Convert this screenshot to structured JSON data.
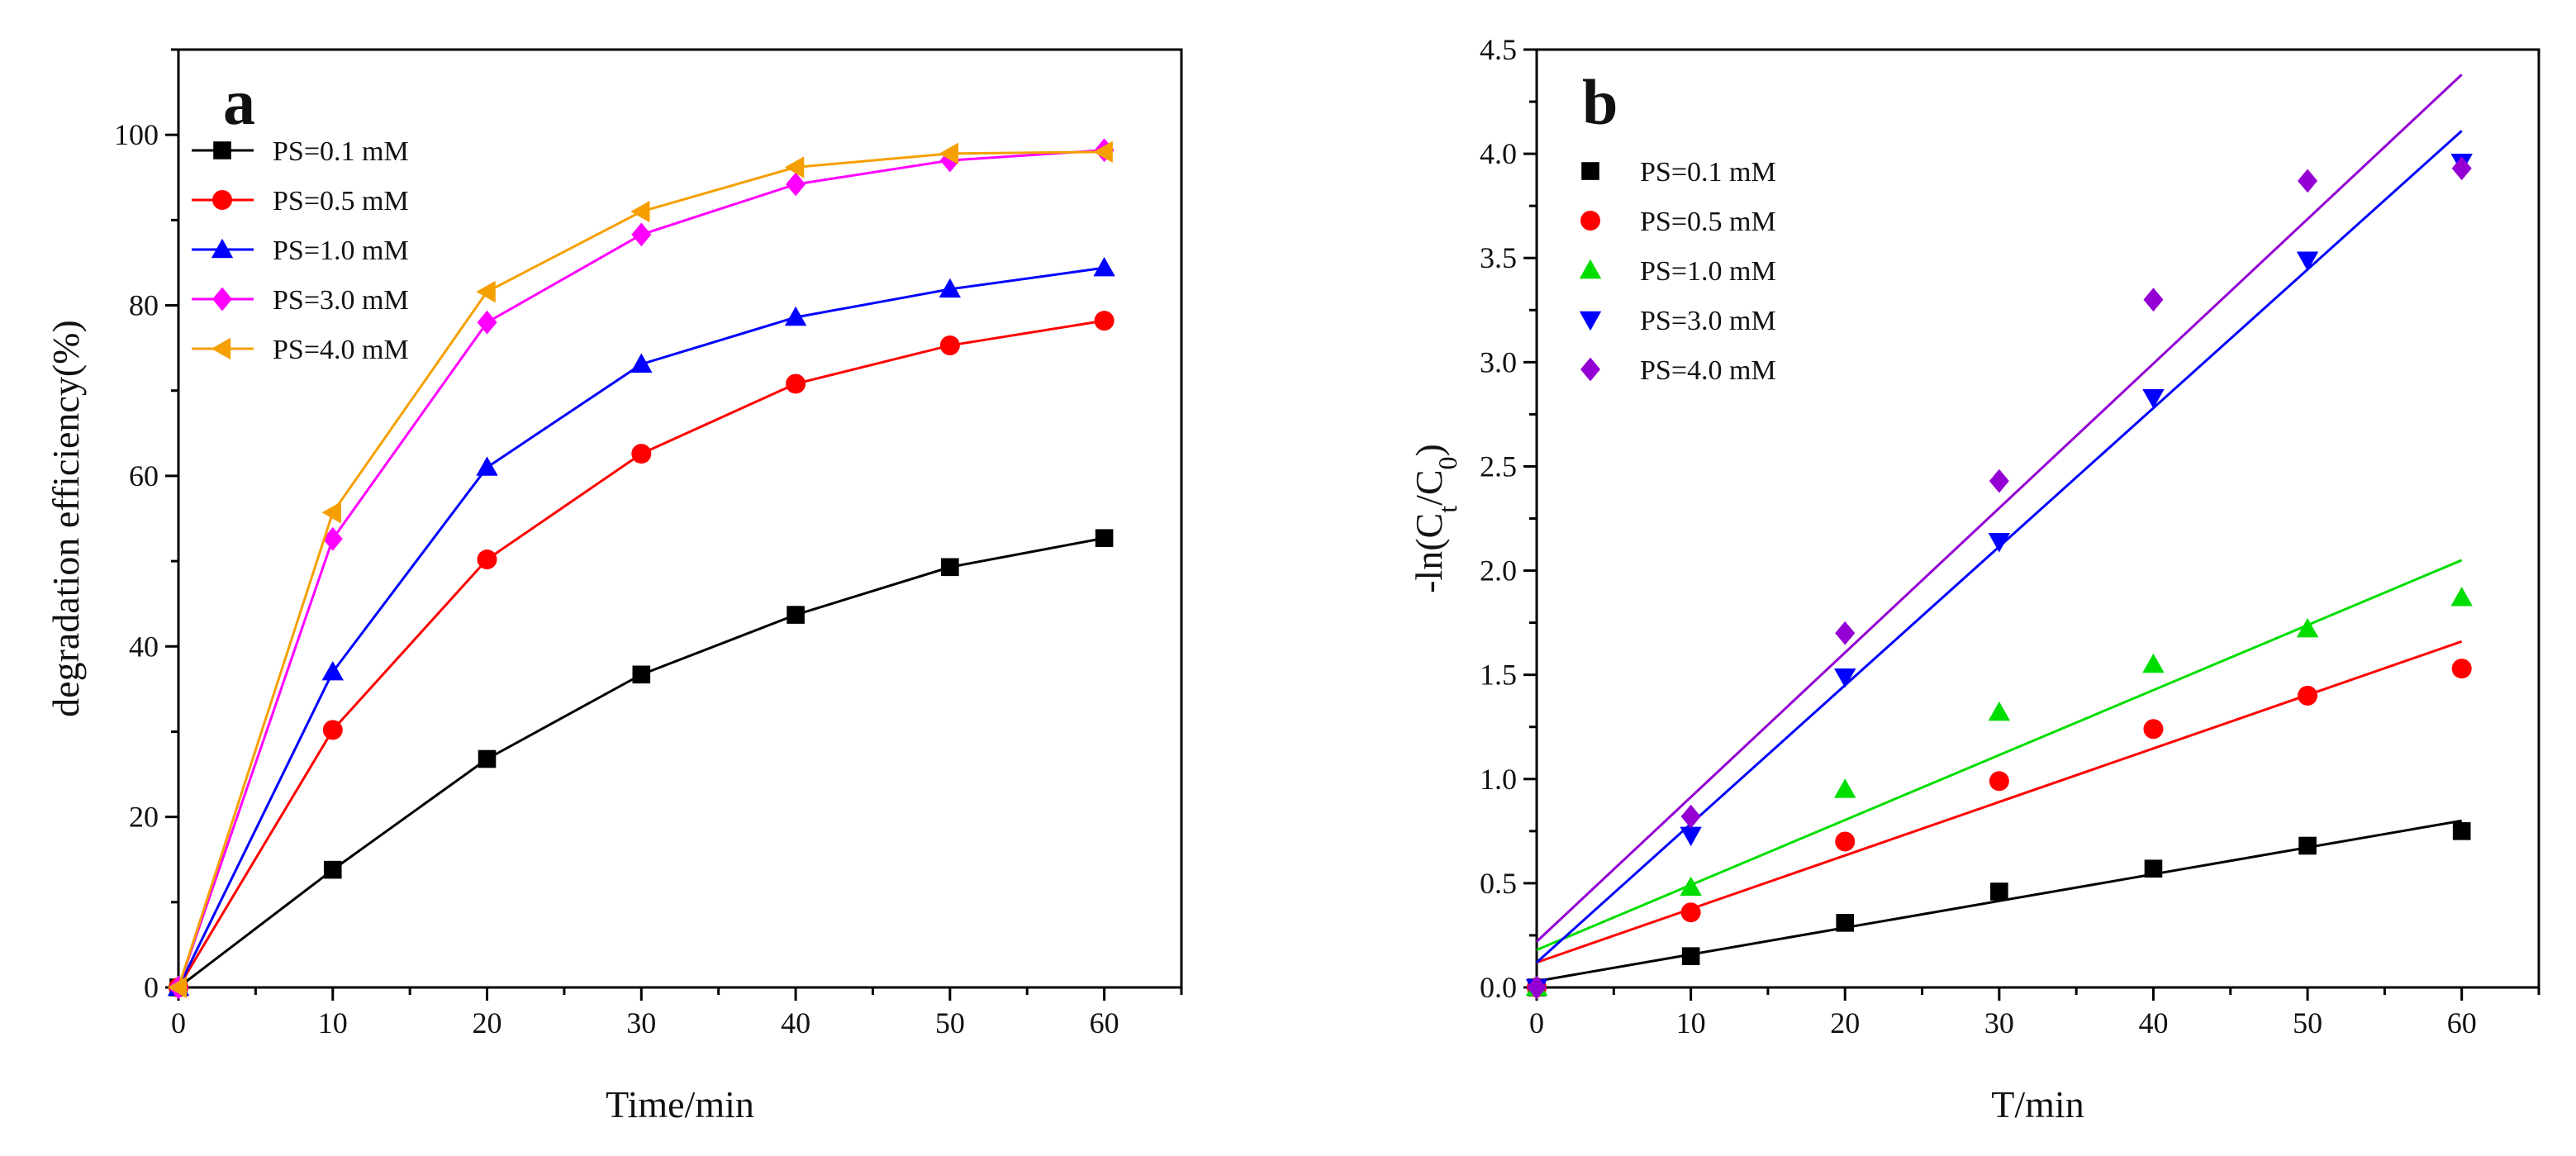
{
  "chart_data": [
    {
      "type": "line",
      "panel_label": "a",
      "xlabel": "Time/min",
      "ylabel": "degradation  efficiency(%)",
      "xlim": [
        0,
        65
      ],
      "ylim": [
        0,
        110
      ],
      "xticks": [
        0,
        10,
        20,
        30,
        40,
        50,
        60
      ],
      "yticks": [
        0,
        20,
        40,
        60,
        80,
        100
      ],
      "grid": false,
      "legend_position": "top-left",
      "x": [
        0,
        10,
        20,
        30,
        40,
        50,
        60
      ],
      "series": [
        {
          "name": "PS=0.1 mM",
          "marker": "square",
          "color": "#000000",
          "values": [
            0,
            13.8,
            26.8,
            36.7,
            43.7,
            49.3,
            52.7
          ]
        },
        {
          "name": "PS=0.5 mM",
          "marker": "circle",
          "color": "#ff0000",
          "values": [
            0,
            30.2,
            50.2,
            62.6,
            70.8,
            75.3,
            78.2
          ]
        },
        {
          "name": "PS=1.0 mM",
          "marker": "triangle-up",
          "color": "#0000ff",
          "values": [
            0,
            37.0,
            61.0,
            73.1,
            78.6,
            81.9,
            84.4
          ]
        },
        {
          "name": "PS=3.0 mM",
          "marker": "diamond",
          "color": "#ff00ff",
          "values": [
            0,
            52.6,
            78.0,
            88.3,
            94.2,
            97.0,
            98.2
          ]
        },
        {
          "name": "PS=4.0 mM",
          "marker": "triangle-left",
          "color": "#f5a000",
          "values": [
            0,
            55.7,
            81.6,
            91.0,
            96.2,
            97.8,
            98.0
          ]
        }
      ]
    },
    {
      "type": "scatter",
      "panel_label": "b",
      "xlabel": "T/min",
      "ylabel": "-ln(Ct/C0)",
      "xlim": [
        0,
        65
      ],
      "ylim": [
        0,
        4.5
      ],
      "xticks": [
        0,
        10,
        20,
        30,
        40,
        50,
        60
      ],
      "yticks": [
        0.0,
        0.5,
        1.0,
        1.5,
        2.0,
        2.5,
        3.0,
        3.5,
        4.0,
        4.5
      ],
      "grid": false,
      "legend_position": "top-left",
      "x": [
        0,
        10,
        20,
        30,
        40,
        50,
        60
      ],
      "series": [
        {
          "name": "PS=0.1 mM",
          "marker": "square",
          "color": "#000000",
          "values": [
            0,
            0.15,
            0.31,
            0.46,
            0.57,
            0.68,
            0.75
          ],
          "fit": [
            0.03,
            0.8
          ]
        },
        {
          "name": "PS=0.5 mM",
          "marker": "circle",
          "color": "#ff0000",
          "values": [
            0,
            0.36,
            0.7,
            0.99,
            1.24,
            1.4,
            1.53
          ],
          "fit": [
            0.12,
            1.66
          ]
        },
        {
          "name": "PS=1.0 mM",
          "marker": "triangle-up",
          "color": "#00dd00",
          "values": [
            0,
            0.48,
            0.95,
            1.32,
            1.55,
            1.72,
            1.87
          ],
          "fit": [
            0.18,
            2.05
          ]
        },
        {
          "name": "PS=3.0 mM",
          "marker": "triangle-down",
          "color": "#0000ff",
          "values": [
            0,
            0.73,
            1.49,
            2.14,
            2.83,
            3.49,
            3.96
          ],
          "fit": [
            0.12,
            4.11
          ]
        },
        {
          "name": "PS=4.0 mM",
          "marker": "diamond",
          "color": "#9400d3",
          "values": [
            0,
            0.82,
            1.7,
            2.43,
            3.3,
            3.87,
            3.93
          ],
          "fit": [
            0.22,
            4.38
          ]
        }
      ]
    }
  ]
}
